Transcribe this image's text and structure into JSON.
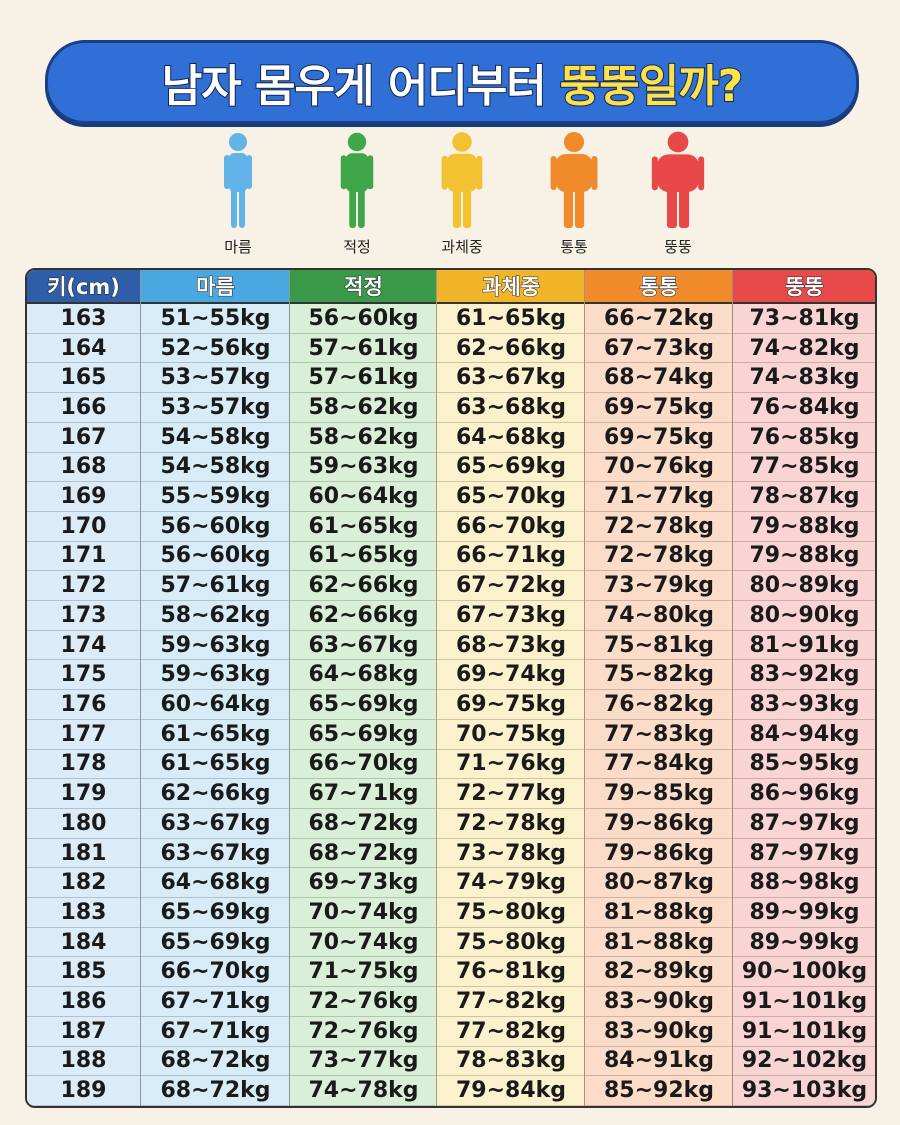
{
  "header": {
    "title": "남자 몸우게 어디부터",
    "title_highlight": "뚱뚱일까?"
  },
  "figures": [
    "마름",
    "적정",
    "과체중",
    "통통",
    "뚱뚱"
  ],
  "table": {
    "header": [
      "키(cm)",
      "마름",
      "적정",
      "과체중",
      "통통",
      "뚱뚱"
    ],
    "rows": [
      [
        "163",
        "51~55kg",
        "56~60kg",
        "61~65kg",
        "66~72kg",
        "73~81kg"
      ],
      [
        "164",
        "52~56kg",
        "57~61kg",
        "62~66kg",
        "67~73kg",
        "74~82kg"
      ],
      [
        "165",
        "53~57kg",
        "57~61kg",
        "63~67kg",
        "68~74kg",
        "74~83kg"
      ],
      [
        "166",
        "53~57kg",
        "58~62kg",
        "63~68kg",
        "69~75kg",
        "76~84kg"
      ],
      [
        "167",
        "54~58kg",
        "58~62kg",
        "64~68kg",
        "69~75kg",
        "76~85kg"
      ],
      [
        "168",
        "54~58kg",
        "59~63kg",
        "65~69kg",
        "70~76kg",
        "77~85kg"
      ],
      [
        "169",
        "55~59kg",
        "60~64kg",
        "65~70kg",
        "71~77kg",
        "78~87kg"
      ],
      [
        "170",
        "56~60kg",
        "61~65kg",
        "66~70kg",
        "72~78kg",
        "79~88kg"
      ],
      [
        "171",
        "56~60kg",
        "61~65kg",
        "66~71kg",
        "72~78kg",
        "79~88kg"
      ],
      [
        "172",
        "57~61kg",
        "62~66kg",
        "67~72kg",
        "73~79kg",
        "80~89kg"
      ],
      [
        "173",
        "58~62kg",
        "62~66kg",
        "67~73kg",
        "74~80kg",
        "80~90kg"
      ],
      [
        "174",
        "59~63kg",
        "63~67kg",
        "68~73kg",
        "75~81kg",
        "81~91kg"
      ],
      [
        "175",
        "59~63kg",
        "64~68kg",
        "69~74kg",
        "75~82kg",
        "83~92kg"
      ],
      [
        "176",
        "60~64kg",
        "65~69kg",
        "69~75kg",
        "76~82kg",
        "83~93kg"
      ],
      [
        "177",
        "61~65kg",
        "65~69kg",
        "70~75kg",
        "77~83kg",
        "84~94kg"
      ],
      [
        "178",
        "61~65kg",
        "66~70kg",
        "71~76kg",
        "77~84kg",
        "85~95kg"
      ],
      [
        "179",
        "62~66kg",
        "67~71kg",
        "72~77kg",
        "79~85kg",
        "86~96kg"
      ],
      [
        "180",
        "63~67kg",
        "68~72kg",
        "72~78kg",
        "79~86kg",
        "87~97kg"
      ],
      [
        "181",
        "63~67kg",
        "68~72kg",
        "73~78kg",
        "79~86kg",
        "87~97kg"
      ],
      [
        "182",
        "64~68kg",
        "69~73kg",
        "74~79kg",
        "80~87kg",
        "88~98kg"
      ],
      [
        "183",
        "65~69kg",
        "70~74kg",
        "75~80kg",
        "81~88kg",
        "89~99kg"
      ],
      [
        "184",
        "65~69kg",
        "70~74kg",
        "75~80kg",
        "81~88kg",
        "89~99kg"
      ],
      [
        "185",
        "66~70kg",
        "71~75kg",
        "76~81kg",
        "82~89kg",
        "90~100kg"
      ],
      [
        "186",
        "67~71kg",
        "72~76kg",
        "77~82kg",
        "83~90kg",
        "91~101kg"
      ],
      [
        "187",
        "67~71kg",
        "72~76kg",
        "77~82kg",
        "83~90kg",
        "91~101kg"
      ],
      [
        "188",
        "68~72kg",
        "73~77kg",
        "78~83kg",
        "84~91kg",
        "92~102kg"
      ],
      [
        "189",
        "68~72kg",
        "74~78kg",
        "79~84kg",
        "85~92kg",
        "93~103kg"
      ]
    ]
  }
}
